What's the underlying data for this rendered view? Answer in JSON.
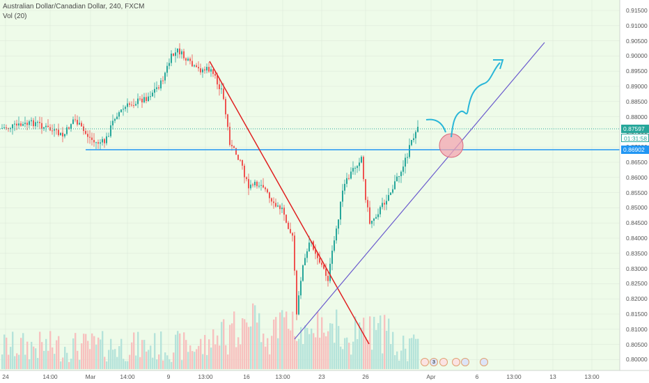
{
  "legend": {
    "symbol": "Australian Dollar/Canadian Dollar, 240, FXCM",
    "volume": "Vol (20)"
  },
  "price_axis": {
    "ticks": [
      "0.91500",
      "0.91000",
      "0.90500",
      "0.90000",
      "0.89500",
      "0.89000",
      "0.88500",
      "0.88000",
      "0.87500",
      "0.87000",
      "0.86500",
      "0.86000",
      "0.85500",
      "0.85000",
      "0.84500",
      "0.84000",
      "0.83500",
      "0.83000",
      "0.82500",
      "0.82000",
      "0.81500",
      "0.81000",
      "0.80500",
      "0.80000"
    ],
    "last_price": "0.87597",
    "countdown": "01:31:58",
    "level_price": "0.86902"
  },
  "time_axis": {
    "labels": [
      "24",
      "14:00",
      "Mar",
      "14:00",
      "9",
      "13:00",
      "16",
      "13:00",
      "23",
      "26",
      "Apr",
      "6",
      "13:00",
      "13",
      "13:00"
    ]
  },
  "event_icons": [
    {
      "name": "canada-flag-icon",
      "count": ""
    },
    {
      "name": "australia-flag-icon",
      "count": "3"
    },
    {
      "name": "canada-flag-icon",
      "count": ""
    },
    {
      "name": "canada-flag-icon",
      "count": ""
    },
    {
      "name": "australia-flag-icon",
      "count": ""
    },
    {
      "name": "australia-flag-icon",
      "count": ""
    }
  ],
  "colors": {
    "background": "#eefbe9",
    "up_candle": "#26a69a",
    "down_candle": "#ef5350",
    "up_volume": "#b5e3da",
    "down_volume": "#f7c1bf",
    "horizontal_level": "#2196f3",
    "downtrend_line": "#e02020",
    "uptrend_line": "#6a5acd",
    "projection_arrow": "#29b6d8",
    "circle_fill": "#f3a6b0"
  }
}
